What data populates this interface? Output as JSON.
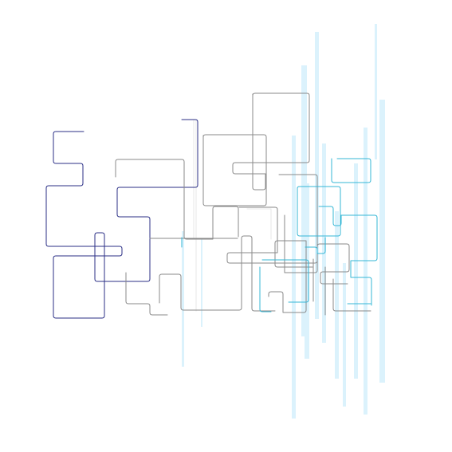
{
  "graphic": {
    "subject": "abstract-circuit-line-art",
    "colors": {
      "background": "#ffffff",
      "navy": "#2b2f86",
      "gray": "#8a8a8a",
      "cyan": "#35b7d6",
      "light_cyan": "#cfeefc",
      "pale_gray": "#e7e7e7"
    }
  }
}
